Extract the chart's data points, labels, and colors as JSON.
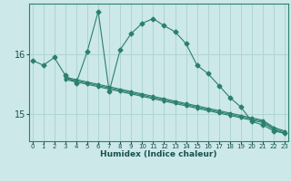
{
  "xlabel": "Humidex (Indice chaleur)",
  "x_ticks": [
    0,
    1,
    2,
    3,
    4,
    5,
    6,
    7,
    8,
    9,
    10,
    11,
    12,
    13,
    14,
    15,
    16,
    17,
    18,
    19,
    20,
    21,
    22,
    23
  ],
  "y_ticks": [
    15,
    16
  ],
  "ylim": [
    14.55,
    16.85
  ],
  "xlim": [
    -0.3,
    23.3
  ],
  "bg_color": "#cce8e8",
  "line_color": "#2a7f6f",
  "grid_color": "#b0d4d4",
  "series1": {
    "x": [
      0,
      1,
      2,
      3,
      4,
      5,
      6,
      7,
      8,
      9,
      10,
      11,
      12,
      13,
      14,
      15,
      16,
      17,
      18,
      19,
      20,
      21,
      22,
      23
    ],
    "y": [
      15.9,
      15.82,
      15.95,
      15.65,
      15.52,
      16.05,
      16.72,
      15.38,
      16.08,
      16.35,
      16.52,
      16.6,
      16.48,
      16.38,
      16.18,
      15.82,
      15.68,
      15.48,
      15.28,
      15.12,
      14.88,
      14.82,
      14.72,
      14.68
    ]
  },
  "series2": {
    "x": [
      3,
      4,
      5,
      6,
      7,
      8,
      9,
      10,
      11,
      12,
      13,
      14,
      15,
      16,
      17,
      18,
      19,
      20,
      21,
      22,
      23
    ],
    "y": [
      15.62,
      15.58,
      15.54,
      15.5,
      15.46,
      15.42,
      15.38,
      15.34,
      15.3,
      15.26,
      15.22,
      15.18,
      15.14,
      15.1,
      15.06,
      15.02,
      14.98,
      14.94,
      14.9,
      14.78,
      14.72
    ]
  },
  "series3": {
    "x": [
      3,
      4,
      5,
      6,
      7,
      8,
      9,
      10,
      11,
      12,
      13,
      14,
      15,
      16,
      17,
      18,
      19,
      20,
      21,
      22,
      23
    ],
    "y": [
      15.6,
      15.56,
      15.52,
      15.48,
      15.44,
      15.4,
      15.36,
      15.32,
      15.28,
      15.24,
      15.2,
      15.16,
      15.12,
      15.08,
      15.04,
      15.0,
      14.96,
      14.92,
      14.88,
      14.76,
      14.7
    ]
  },
  "series4": {
    "x": [
      3,
      4,
      5,
      6,
      7,
      8,
      9,
      10,
      11,
      12,
      13,
      14,
      15,
      16,
      17,
      18,
      19,
      20,
      21,
      22,
      23
    ],
    "y": [
      15.58,
      15.54,
      15.5,
      15.46,
      15.42,
      15.38,
      15.34,
      15.3,
      15.26,
      15.22,
      15.18,
      15.14,
      15.1,
      15.06,
      15.02,
      14.98,
      14.94,
      14.9,
      14.86,
      14.74,
      14.68
    ]
  }
}
